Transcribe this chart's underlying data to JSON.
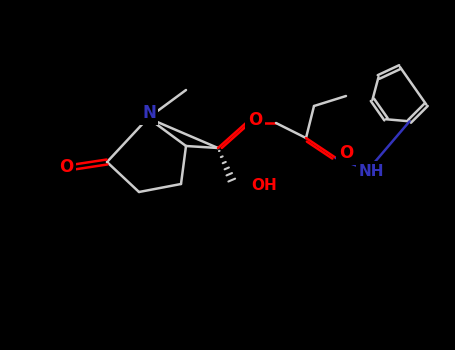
{
  "background_color": "#000000",
  "bond_color": "#cccccc",
  "atom_colors": {
    "O": "#ff0000",
    "N": "#3333bb",
    "C": "#cccccc"
  },
  "figsize": [
    4.55,
    3.5
  ],
  "dpi": 100
}
